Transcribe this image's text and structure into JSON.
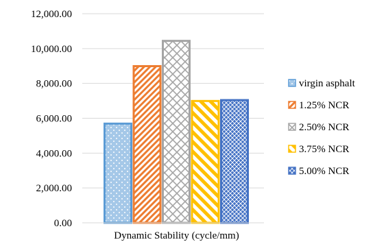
{
  "chart_data": {
    "type": "bar",
    "title": "",
    "xlabel": "",
    "ylabel": "",
    "categories": [
      "Dynamic Stability (cycle/mm)"
    ],
    "series": [
      {
        "name": "virgin asphalt",
        "values": [
          5750
        ],
        "color": "#5b9bd5",
        "pattern": "dots"
      },
      {
        "name": "1.25% NCR",
        "values": [
          9050
        ],
        "color": "#ed7d31",
        "pattern": "diagonal-stripes-dense"
      },
      {
        "name": "2.50% NCR",
        "values": [
          10500
        ],
        "color": "#a5a5a5",
        "pattern": "diagonal-lattice"
      },
      {
        "name": "3.75% NCR",
        "values": [
          7050
        ],
        "color": "#ffc000",
        "pattern": "wide-diagonal-stripes"
      },
      {
        "name": "5.00% NCR",
        "values": [
          7100
        ],
        "color": "#4472c4",
        "pattern": "crosshatch"
      }
    ],
    "ylim": [
      0,
      12000
    ],
    "yticks": [
      "0.00",
      "2,000.00",
      "4,000.00",
      "6,000.00",
      "8,000.00",
      "10,000.00",
      "12,000.00"
    ],
    "ytick_values": [
      0,
      2000,
      4000,
      6000,
      8000,
      10000,
      12000
    ],
    "grid": true,
    "legend_position": "right"
  }
}
